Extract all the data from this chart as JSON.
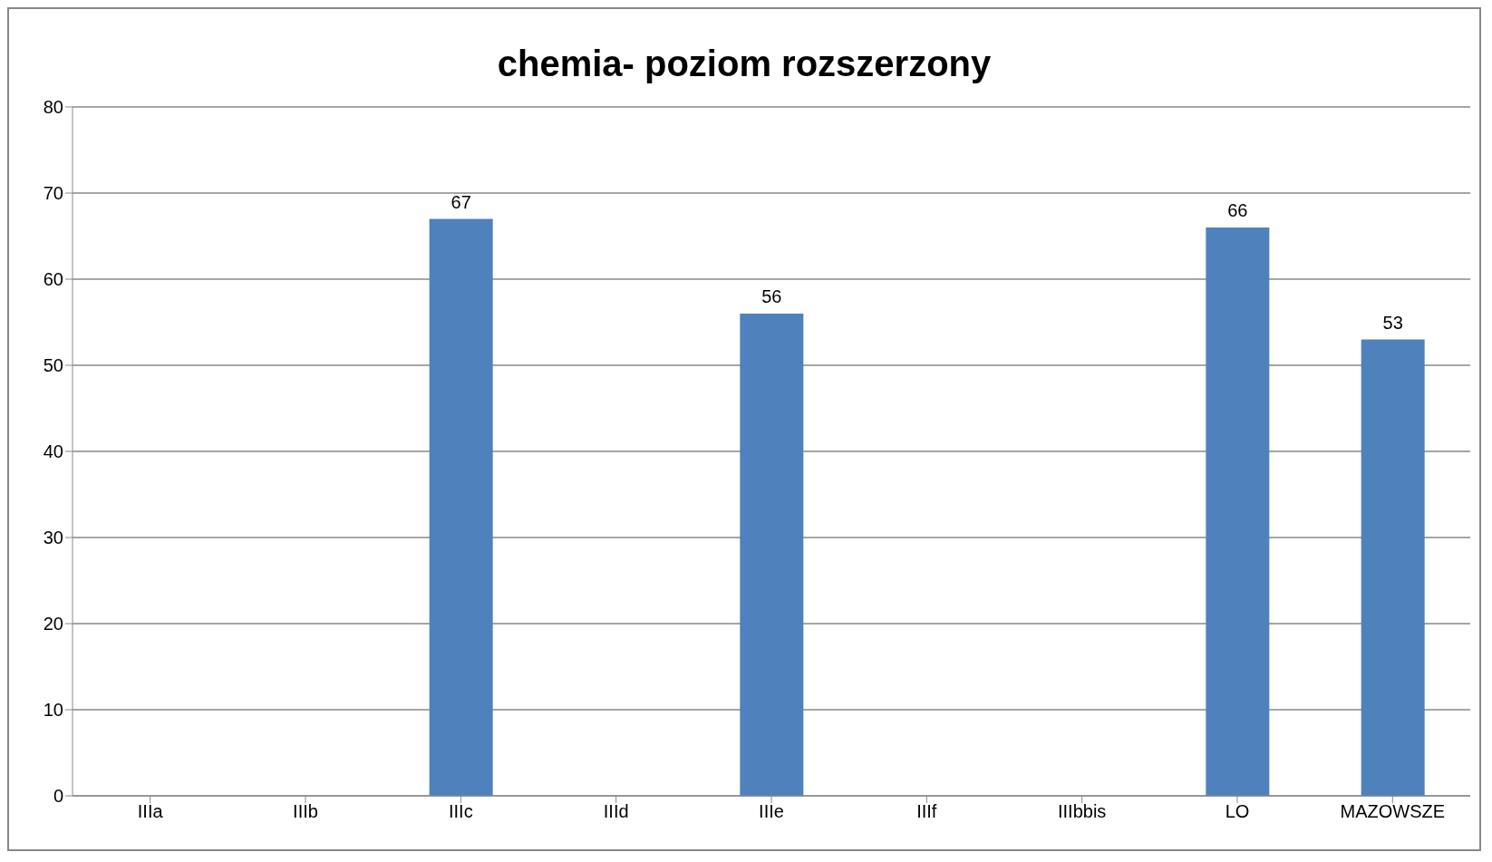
{
  "chart_data": {
    "type": "bar",
    "title": "chemia- poziom rozszerzony",
    "categories": [
      "IIIa",
      "IIIb",
      "IIIc",
      "IIId",
      "IIIe",
      "IIIf",
      "IIIbbis",
      "LO",
      "MAZOWSZE"
    ],
    "values": [
      null,
      null,
      67,
      null,
      56,
      null,
      null,
      66,
      53
    ],
    "color": "#4f81bd",
    "ylim": [
      0,
      80
    ],
    "yticks": [
      0,
      10,
      20,
      30,
      40,
      50,
      60,
      70,
      80
    ],
    "grid": "y",
    "data_labels": true,
    "legend": false
  }
}
